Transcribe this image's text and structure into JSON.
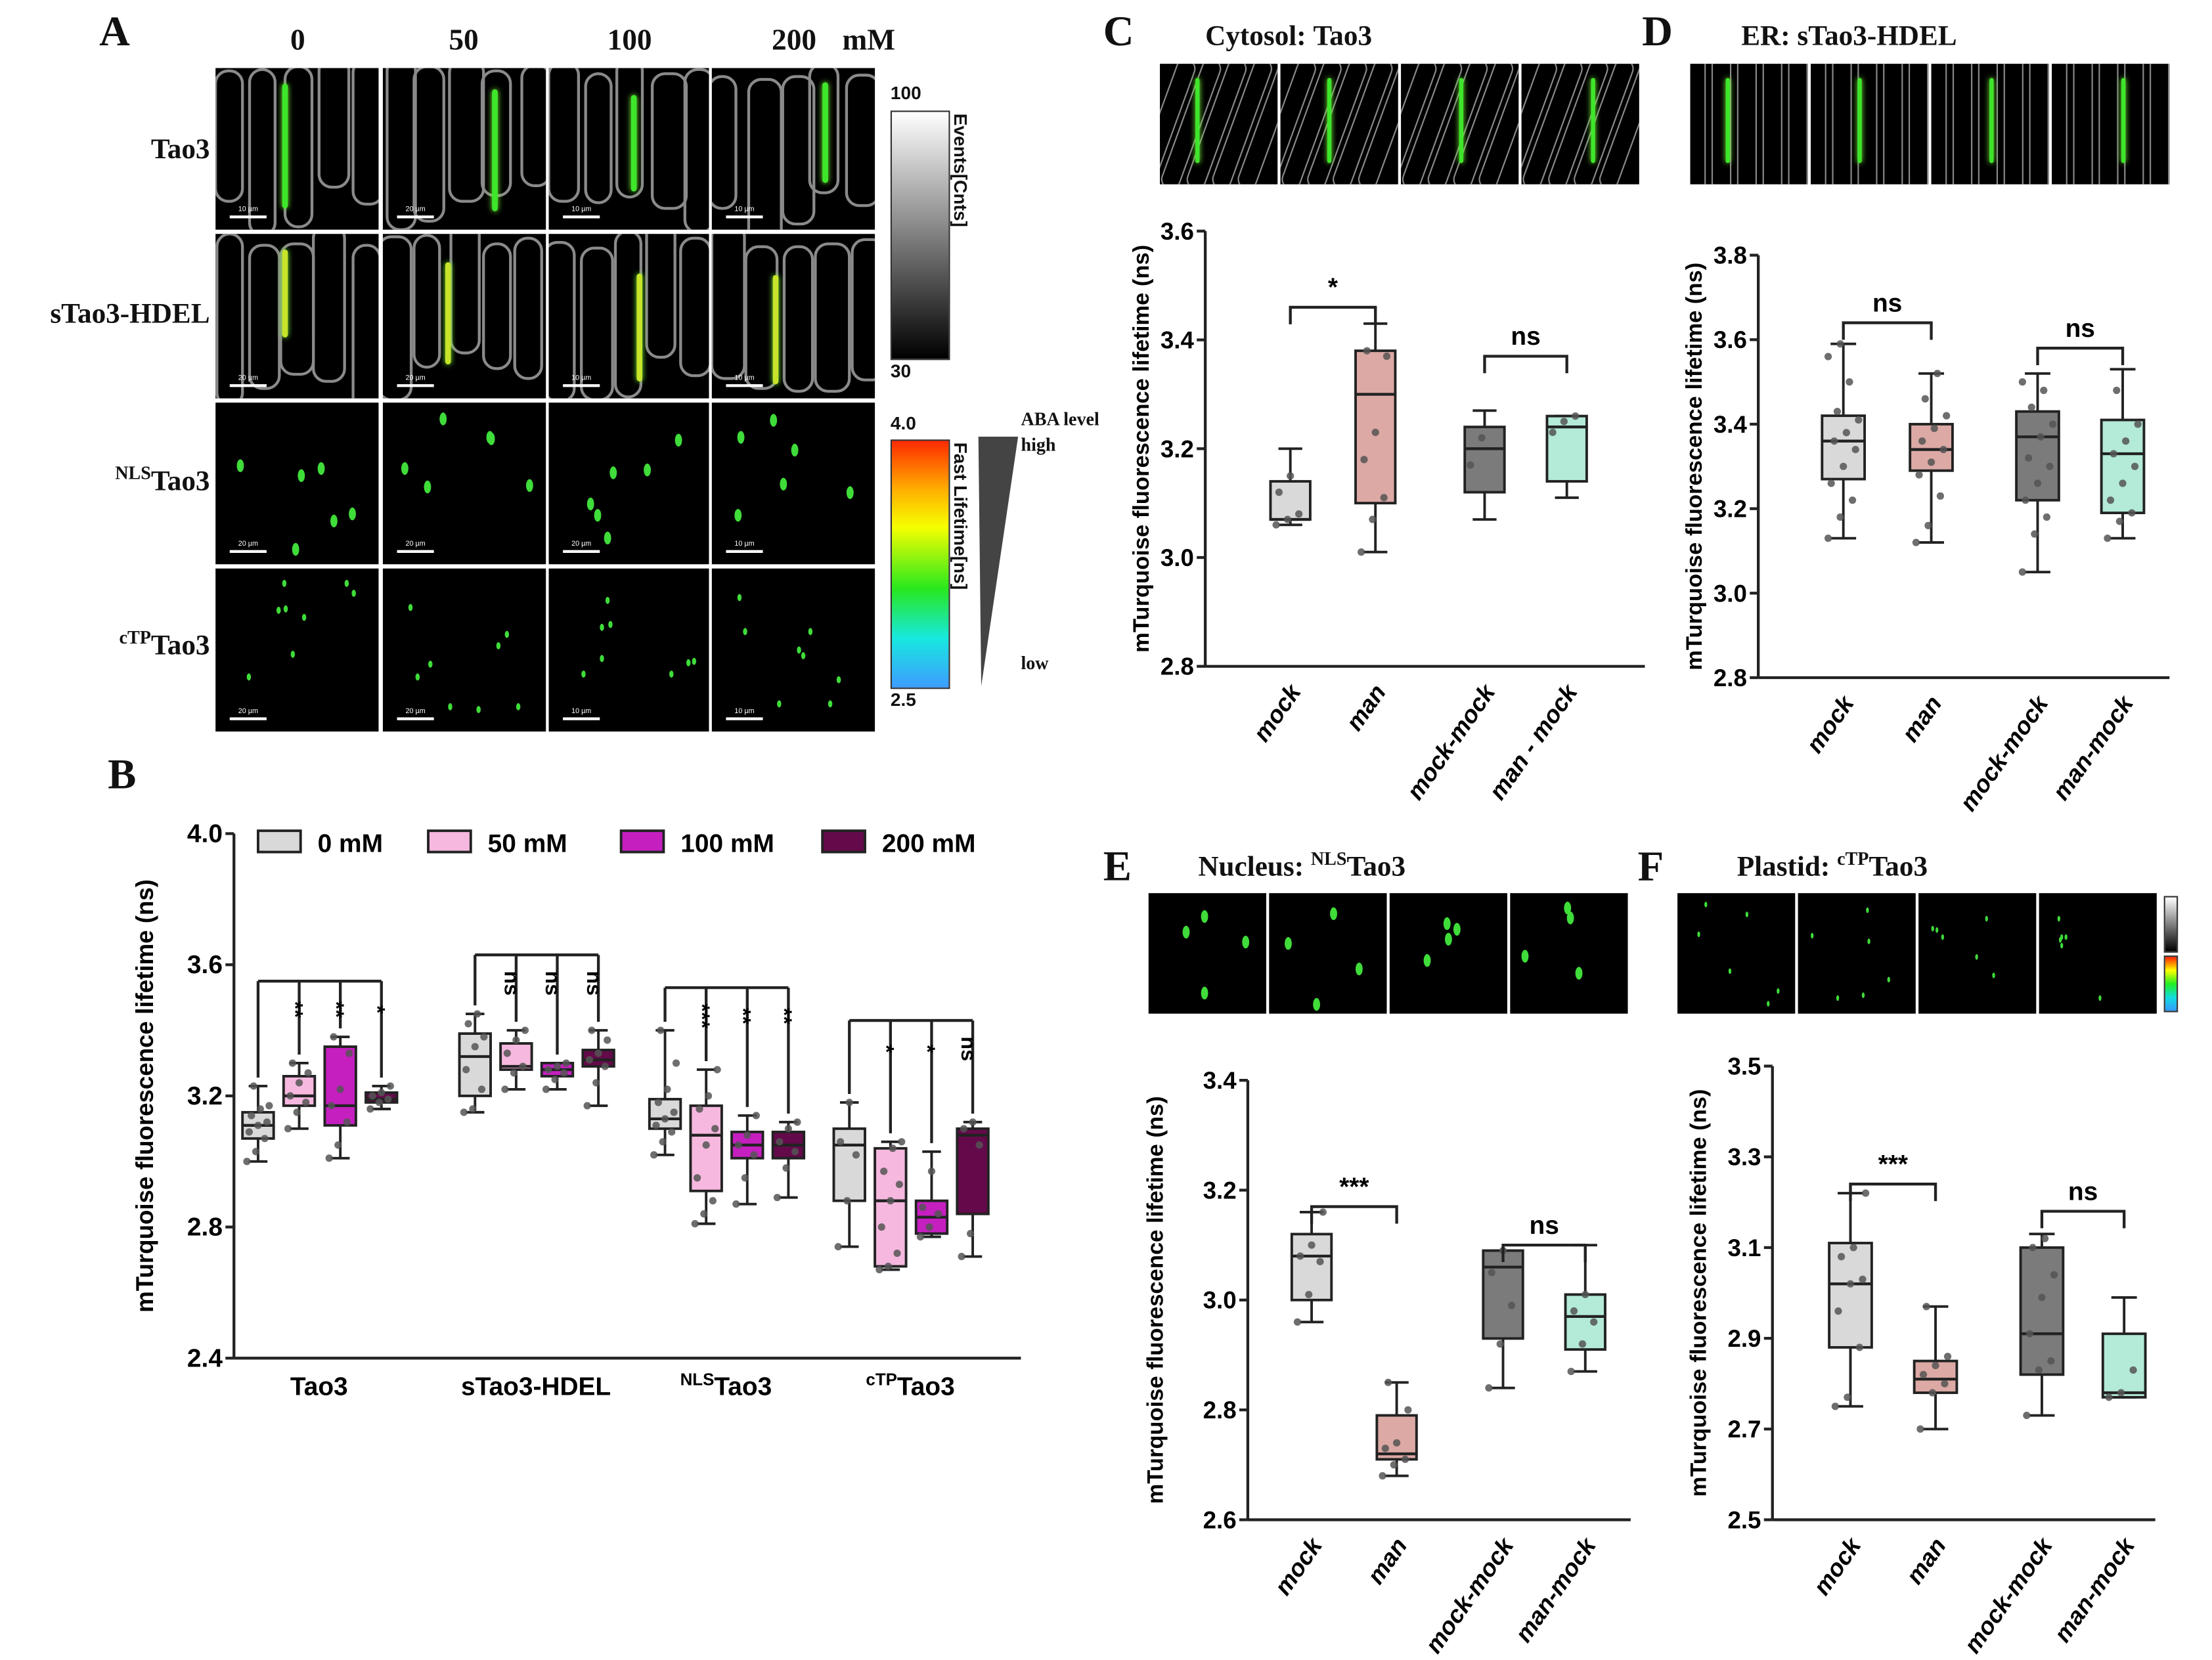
{
  "panel_a": {
    "letter": "A",
    "columns": [
      "0",
      "50",
      "100",
      "200"
    ],
    "unit": "mM",
    "rows": [
      {
        "sup": "",
        "label": "Tao3",
        "scalebars": [
          "10 µm",
          "20 µm",
          "10 µm",
          "10 µm"
        ]
      },
      {
        "sup": "",
        "label": "sTao3-HDEL",
        "scalebars": [
          "20 µm",
          "20 µm",
          "10 µm",
          "10 µm"
        ]
      },
      {
        "sup": "NLS",
        "label": "Tao3",
        "scalebars": [
          "20 µm",
          "20 µm",
          "20 µm",
          "10 µm"
        ]
      },
      {
        "sup": "cTP",
        "label": "Tao3",
        "scalebars": [
          "20 µm",
          "20 µm",
          "10 µm",
          "10 µm"
        ]
      }
    ],
    "events_bar": {
      "title": "Events[Cnts]",
      "max": "100",
      "min": "30"
    },
    "lifetime_bar": {
      "title": "Fast Lifetime[ns]",
      "max": "4.0",
      "min": "2.5"
    },
    "aba": {
      "title": "ABA level",
      "high": "high",
      "low": "low"
    }
  },
  "panel_letters": {
    "b": "B",
    "c": "C",
    "d": "D",
    "e": "E",
    "f": "F"
  },
  "panel_titles": {
    "c": {
      "prefix": "Cytosol: ",
      "sup": "",
      "name": "Tao3"
    },
    "d": {
      "prefix": "ER: ",
      "sup": "",
      "name": "sTao3-HDEL"
    },
    "e": {
      "prefix": "Nucleus: ",
      "sup": "NLS",
      "name": "Tao3"
    },
    "f": {
      "prefix": "Plastid: ",
      "sup": "cTP",
      "name": "Tao3"
    }
  },
  "colors": {
    "c0": "#d9d9d9",
    "c50": "#f6b8df",
    "c100": "#c51fc0",
    "c200": "#640a4b",
    "mock": "#d9d9d9",
    "man": "#dca9a4",
    "mockmock": "#7b7b7b",
    "manmock": "#b3ead8"
  },
  "chart_data": [
    {
      "id": "B",
      "type": "box",
      "ylabel": "mTurquoise fluorescence lifetime (ns)",
      "ylim": [
        2.4,
        4.0
      ],
      "yticks": [
        "2.4",
        "2.8",
        "3.2",
        "3.6",
        "4.0"
      ],
      "legend": [
        {
          "name": "0 mM",
          "color": "#d9d9d9"
        },
        {
          "name": "50 mM",
          "color": "#f6b8df"
        },
        {
          "name": "100 mM",
          "color": "#c51fc0"
        },
        {
          "name": "200 mM",
          "color": "#640a4b"
        }
      ],
      "legend_position": "top",
      "categories": [
        {
          "sup": "",
          "name": "Tao3",
          "bracket": 3.55,
          "sig": [
            "**",
            "**",
            "*"
          ],
          "boxes": [
            {
              "min": 3.0,
              "q1": 3.07,
              "median": 3.11,
              "q3": 3.15,
              "max": 3.23,
              "points": [
                3.0,
                3.03,
                3.07,
                3.09,
                3.11,
                3.12,
                3.14,
                3.16,
                3.17,
                3.23
              ]
            },
            {
              "min": 3.1,
              "q1": 3.17,
              "median": 3.2,
              "q3": 3.26,
              "max": 3.3,
              "points": [
                3.1,
                3.15,
                3.18,
                3.2,
                3.24,
                3.27,
                3.3
              ]
            },
            {
              "min": 3.01,
              "q1": 3.11,
              "median": 3.17,
              "q3": 3.35,
              "max": 3.38,
              "points": [
                3.01,
                3.05,
                3.12,
                3.17,
                3.22,
                3.33,
                3.38
              ]
            },
            {
              "min": 3.16,
              "q1": 3.18,
              "median": 3.19,
              "q3": 3.21,
              "max": 3.23,
              "points": [
                3.16,
                3.18,
                3.19,
                3.2,
                3.21,
                3.23
              ]
            }
          ]
        },
        {
          "sup": "",
          "name": "sTao3-HDEL",
          "bracket": 3.63,
          "sig": [
            "ns",
            "ns",
            "ns"
          ],
          "boxes": [
            {
              "min": 3.15,
              "q1": 3.2,
              "median": 3.32,
              "q3": 3.39,
              "max": 3.45,
              "points": [
                3.15,
                3.16,
                3.22,
                3.28,
                3.35,
                3.38,
                3.42,
                3.45
              ]
            },
            {
              "min": 3.22,
              "q1": 3.28,
              "median": 3.29,
              "q3": 3.36,
              "max": 3.4,
              "points": [
                3.22,
                3.27,
                3.29,
                3.33,
                3.37,
                3.4
              ]
            },
            {
              "min": 3.22,
              "q1": 3.26,
              "median": 3.28,
              "q3": 3.3,
              "max": 3.3,
              "points": [
                3.22,
                3.25,
                3.27,
                3.28,
                3.29,
                3.3
              ]
            },
            {
              "min": 3.17,
              "q1": 3.29,
              "median": 3.31,
              "q3": 3.34,
              "max": 3.4,
              "points": [
                3.17,
                3.24,
                3.29,
                3.31,
                3.33,
                3.37,
                3.4
              ]
            }
          ]
        },
        {
          "sup": "NLS",
          "name": "Tao3",
          "bracket": 3.53,
          "sig": [
            "***",
            "**",
            "**"
          ],
          "boxes": [
            {
              "min": 3.02,
              "q1": 3.1,
              "median": 3.13,
              "q3": 3.19,
              "max": 3.4,
              "points": [
                3.02,
                3.06,
                3.09,
                3.11,
                3.13,
                3.15,
                3.18,
                3.22,
                3.3,
                3.4
              ]
            },
            {
              "min": 2.81,
              "q1": 2.91,
              "median": 3.08,
              "q3": 3.17,
              "max": 3.28,
              "points": [
                2.81,
                2.84,
                2.88,
                2.95,
                3.05,
                3.1,
                3.16,
                3.2,
                3.28
              ]
            },
            {
              "min": 2.87,
              "q1": 3.01,
              "median": 3.05,
              "q3": 3.09,
              "max": 3.14,
              "points": [
                2.87,
                2.95,
                3.02,
                3.05,
                3.08,
                3.14
              ]
            },
            {
              "min": 2.89,
              "q1": 3.01,
              "median": 3.05,
              "q3": 3.09,
              "max": 3.12,
              "points": [
                2.89,
                2.98,
                3.03,
                3.06,
                3.1,
                3.12
              ]
            }
          ]
        },
        {
          "sup": "cTP",
          "name": "Tao3",
          "bracket": 3.43,
          "sig": [
            "*",
            "*",
            "ns"
          ],
          "boxes": [
            {
              "min": 2.74,
              "q1": 2.88,
              "median": 3.05,
              "q3": 3.1,
              "max": 3.18,
              "points": [
                2.74,
                2.88,
                3.02,
                3.06,
                3.18
              ]
            },
            {
              "min": 2.67,
              "q1": 2.68,
              "median": 2.88,
              "q3": 3.04,
              "max": 3.06,
              "points": [
                2.67,
                2.68,
                2.72,
                2.8,
                2.88,
                2.93,
                2.97,
                3.04,
                3.06
              ]
            },
            {
              "min": 2.77,
              "q1": 2.78,
              "median": 2.83,
              "q3": 2.88,
              "max": 3.03,
              "points": [
                2.77,
                2.8,
                2.84,
                2.86,
                2.97
              ]
            },
            {
              "min": 2.71,
              "q1": 2.84,
              "median": 3.08,
              "q3": 3.1,
              "max": 3.12,
              "points": [
                2.71,
                2.78,
                3.05,
                3.1,
                3.12
              ]
            }
          ]
        }
      ]
    },
    {
      "id": "C",
      "type": "box",
      "ylabel": "mTurquoise fluorescence lifetime (ns)",
      "ylim": [
        2.8,
        3.6
      ],
      "yticks": [
        "2.8",
        "3.0",
        "3.2",
        "3.4",
        "3.6"
      ],
      "categories": [
        "mock",
        "man",
        "mock-mock",
        "man - mock"
      ],
      "brackets": [
        {
          "from": 0,
          "to": 1,
          "y": 3.46,
          "label": "*"
        },
        {
          "from": 2,
          "to": 3,
          "y": 3.37,
          "label": "ns"
        }
      ],
      "boxes": [
        {
          "color": "#d9d9d9",
          "min": 3.06,
          "q1": 3.07,
          "median": 3.07,
          "q3": 3.14,
          "max": 3.2,
          "points": [
            3.06,
            3.07,
            3.08,
            3.12,
            3.15
          ]
        },
        {
          "color": "#dca9a4",
          "min": 3.01,
          "q1": 3.1,
          "median": 3.3,
          "q3": 3.38,
          "max": 3.43,
          "points": [
            3.01,
            3.07,
            3.11,
            3.18,
            3.23,
            3.37,
            3.38
          ]
        },
        {
          "color": "#7b7b7b",
          "min": 3.07,
          "q1": 3.12,
          "median": 3.2,
          "q3": 3.24,
          "max": 3.27,
          "points": [
            3.17,
            3.22
          ]
        },
        {
          "color": "#b3ead8",
          "min": 3.11,
          "q1": 3.14,
          "median": 3.24,
          "q3": 3.26,
          "max": 3.26,
          "points": [
            3.23,
            3.25,
            3.26
          ]
        }
      ]
    },
    {
      "id": "D",
      "type": "box",
      "ylabel": "mTurquoise fluorescence lifetime (ns)",
      "ylim": [
        2.8,
        3.8
      ],
      "yticks": [
        "2.8",
        "3.0",
        "3.2",
        "3.4",
        "3.6",
        "3.8"
      ],
      "categories": [
        "mock",
        "man",
        "mock-mock",
        "man-mock"
      ],
      "brackets": [
        {
          "from": 0,
          "to": 1,
          "y": 3.64,
          "label": "ns"
        },
        {
          "from": 2,
          "to": 3,
          "y": 3.58,
          "label": "ns"
        }
      ],
      "boxes": [
        {
          "color": "#d9d9d9",
          "min": 3.13,
          "q1": 3.27,
          "median": 3.36,
          "q3": 3.42,
          "max": 3.59,
          "points": [
            3.13,
            3.18,
            3.22,
            3.26,
            3.3,
            3.34,
            3.36,
            3.38,
            3.41,
            3.43,
            3.5,
            3.56,
            3.59
          ]
        },
        {
          "color": "#dca9a4",
          "min": 3.12,
          "q1": 3.29,
          "median": 3.34,
          "q3": 3.4,
          "max": 3.52,
          "points": [
            3.12,
            3.16,
            3.23,
            3.28,
            3.31,
            3.34,
            3.36,
            3.39,
            3.42,
            3.46,
            3.52
          ]
        },
        {
          "color": "#7b7b7b",
          "min": 3.05,
          "q1": 3.22,
          "median": 3.37,
          "q3": 3.43,
          "max": 3.52,
          "points": [
            3.05,
            3.14,
            3.18,
            3.22,
            3.26,
            3.3,
            3.32,
            3.37,
            3.4,
            3.44,
            3.48,
            3.5
          ]
        },
        {
          "color": "#b3ead8",
          "min": 3.13,
          "q1": 3.19,
          "median": 3.33,
          "q3": 3.41,
          "max": 3.53,
          "points": [
            3.13,
            3.17,
            3.19,
            3.22,
            3.26,
            3.3,
            3.33,
            3.36,
            3.4,
            3.48
          ]
        }
      ]
    },
    {
      "id": "E",
      "type": "box",
      "ylabel": "mTurquoise fluorescence lifetime (ns)",
      "ylim": [
        2.6,
        3.4
      ],
      "yticks": [
        "2.6",
        "2.8",
        "3.0",
        "3.2",
        "3.4"
      ],
      "categories": [
        "mock",
        "man",
        "mock-mock",
        "man-mock"
      ],
      "brackets": [
        {
          "from": 0,
          "to": 1,
          "y": 3.17,
          "label": "***"
        },
        {
          "from": 2,
          "to": 3,
          "y": 3.1,
          "label": "ns"
        }
      ],
      "boxes": [
        {
          "color": "#d9d9d9",
          "min": 2.96,
          "q1": 3.0,
          "median": 3.08,
          "q3": 3.12,
          "max": 3.16,
          "points": [
            2.96,
            3.01,
            3.07,
            3.08,
            3.1,
            3.16
          ]
        },
        {
          "color": "#dca9a4",
          "min": 2.68,
          "q1": 2.71,
          "median": 2.72,
          "q3": 2.79,
          "max": 2.85,
          "points": [
            2.68,
            2.7,
            2.71,
            2.73,
            2.74,
            2.8,
            2.85
          ]
        },
        {
          "color": "#7b7b7b",
          "min": 2.84,
          "q1": 2.93,
          "median": 3.06,
          "q3": 3.09,
          "max": 3.09,
          "points": [
            2.84,
            2.92,
            2.99,
            3.05,
            3.09
          ]
        },
        {
          "color": "#b3ead8",
          "min": 2.87,
          "q1": 2.91,
          "median": 2.97,
          "q3": 3.01,
          "max": 3.1,
          "points": [
            2.87,
            2.92,
            2.96,
            2.98,
            3.01
          ]
        }
      ]
    },
    {
      "id": "F",
      "type": "box",
      "ylabel": "mTurquoise fluorescence lifetime (ns)",
      "ylim": [
        2.5,
        3.5
      ],
      "yticks": [
        "2.5",
        "2.7",
        "2.9",
        "3.1",
        "3.3",
        "3.5"
      ],
      "categories": [
        "mock",
        "man",
        "mock-mock",
        "man-mock"
      ],
      "brackets": [
        {
          "from": 0,
          "to": 1,
          "y": 3.24,
          "label": "***"
        },
        {
          "from": 2,
          "to": 3,
          "y": 3.18,
          "label": "ns"
        }
      ],
      "boxes": [
        {
          "color": "#d9d9d9",
          "min": 2.75,
          "q1": 2.88,
          "median": 3.02,
          "q3": 3.11,
          "max": 3.22,
          "points": [
            2.75,
            2.77,
            2.88,
            2.96,
            3.02,
            3.03,
            3.08,
            3.1,
            3.22
          ]
        },
        {
          "color": "#dca9a4",
          "min": 2.7,
          "q1": 2.78,
          "median": 2.81,
          "q3": 2.85,
          "max": 2.97,
          "points": [
            2.7,
            2.78,
            2.8,
            2.82,
            2.84,
            2.86,
            2.97
          ]
        },
        {
          "color": "#7b7b7b",
          "min": 2.73,
          "q1": 2.82,
          "median": 2.91,
          "q3": 3.1,
          "max": 3.13,
          "points": [
            2.73,
            2.83,
            2.85,
            2.91,
            2.99,
            3.04,
            3.1,
            3.12
          ]
        },
        {
          "color": "#b3ead8",
          "min": 2.77,
          "q1": 2.77,
          "median": 2.78,
          "q3": 2.91,
          "max": 2.99,
          "points": [
            2.77,
            2.78,
            2.83
          ]
        }
      ]
    }
  ]
}
